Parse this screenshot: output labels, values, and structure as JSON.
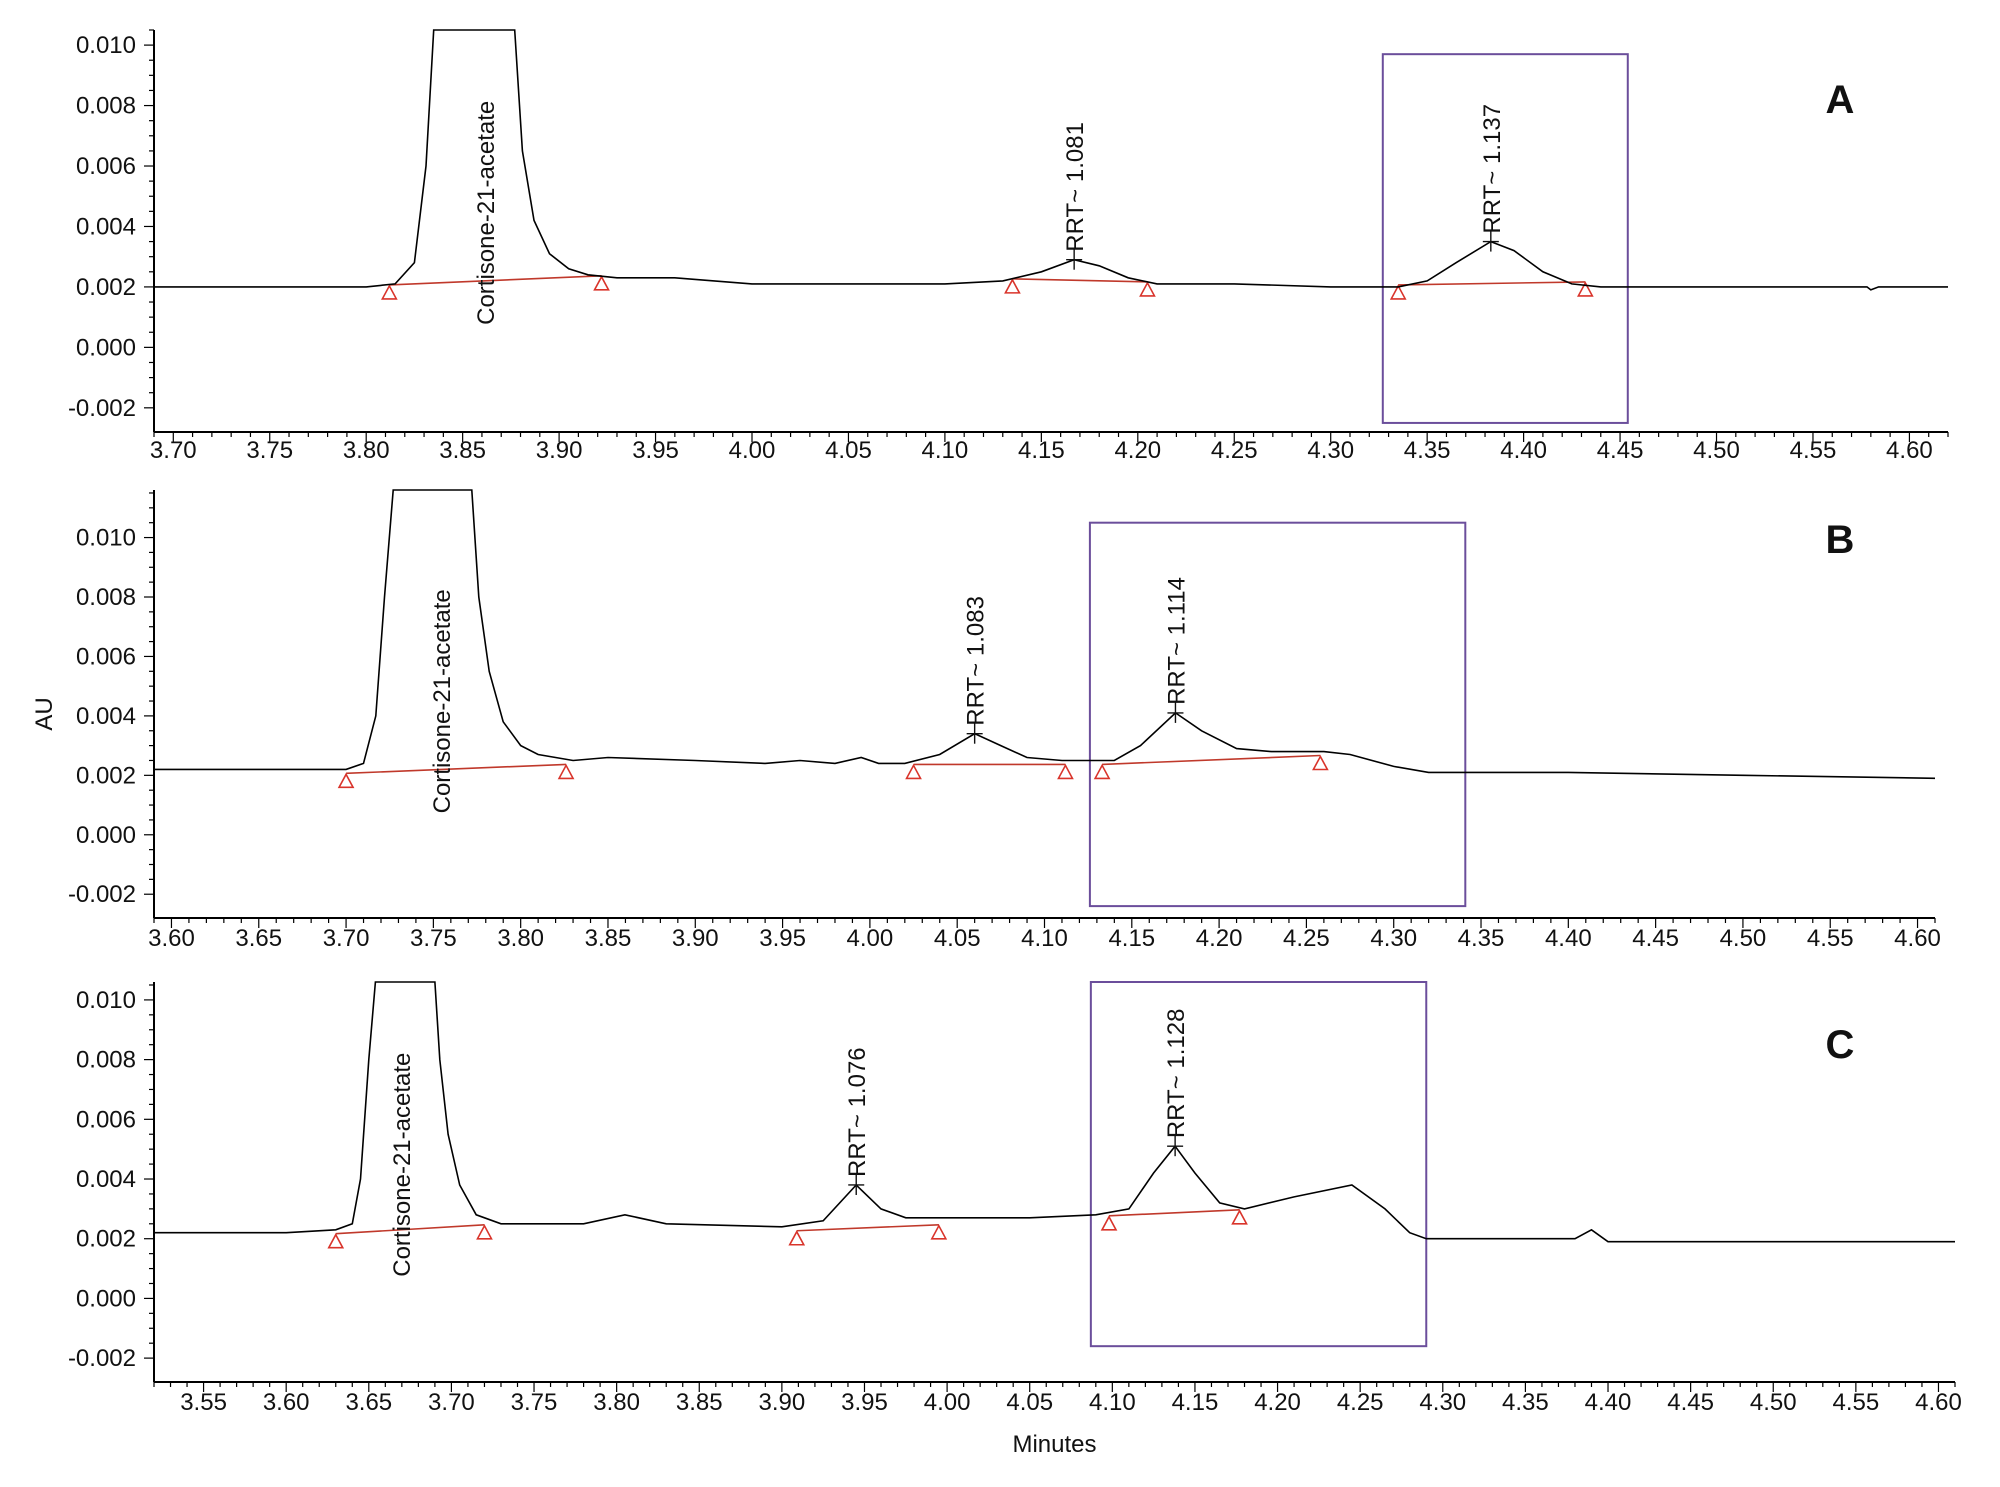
{
  "chart_data": [
    {
      "type": "line",
      "panel_label": "A",
      "xlim": [
        3.69,
        4.62
      ],
      "ylim": [
        -0.0028,
        0.0105
      ],
      "x_ticks": [
        "3.70",
        "3.75",
        "3.80",
        "3.85",
        "3.90",
        "3.95",
        "4.00",
        "4.05",
        "4.10",
        "4.15",
        "4.20",
        "4.25",
        "4.30",
        "4.35",
        "4.40",
        "4.45",
        "4.50",
        "4.55",
        "4.60"
      ],
      "y_ticks": [
        "0.010",
        "0.008",
        "0.006",
        "0.004",
        "0.002",
        "0.000",
        "-0.002"
      ],
      "trace": [
        [
          3.69,
          0.002
        ],
        [
          3.8,
          0.002
        ],
        [
          3.815,
          0.0021
        ],
        [
          3.825,
          0.0028
        ],
        [
          3.831,
          0.006
        ],
        [
          3.835,
          0.0105
        ],
        [
          3.877,
          0.0105
        ],
        [
          3.881,
          0.0065
        ],
        [
          3.887,
          0.0042
        ],
        [
          3.895,
          0.0031
        ],
        [
          3.905,
          0.0026
        ],
        [
          3.915,
          0.0024
        ],
        [
          3.93,
          0.0023
        ],
        [
          3.96,
          0.0023
        ],
        [
          4.0,
          0.0021
        ],
        [
          4.05,
          0.0021
        ],
        [
          4.1,
          0.0021
        ],
        [
          4.13,
          0.0022
        ],
        [
          4.15,
          0.0025
        ],
        [
          4.167,
          0.0029
        ],
        [
          4.18,
          0.0027
        ],
        [
          4.195,
          0.0023
        ],
        [
          4.21,
          0.0021
        ],
        [
          4.25,
          0.0021
        ],
        [
          4.3,
          0.002
        ],
        [
          4.335,
          0.002
        ],
        [
          4.35,
          0.0022
        ],
        [
          4.365,
          0.0028
        ],
        [
          4.383,
          0.0035
        ],
        [
          4.395,
          0.0032
        ],
        [
          4.41,
          0.0025
        ],
        [
          4.425,
          0.0021
        ],
        [
          4.44,
          0.002
        ],
        [
          4.5,
          0.002
        ],
        [
          4.578,
          0.002
        ],
        [
          4.58,
          0.0019
        ],
        [
          4.584,
          0.002
        ],
        [
          4.62,
          0.002
        ]
      ],
      "peaks": [
        {
          "label": "Cortisone-21-acetate",
          "x": 3.862,
          "y": 0.0022,
          "start": [
            3.812,
            0.002
          ],
          "end": [
            3.922,
            0.0023
          ]
        },
        {
          "label": "RRT~ 1.081",
          "x": 4.167,
          "y": 0.0029,
          "start": [
            4.135,
            0.0022
          ],
          "end": [
            4.205,
            0.0021
          ]
        },
        {
          "label": "RRT~ 1.137",
          "x": 4.383,
          "y": 0.0035,
          "start": [
            4.335,
            0.002
          ],
          "end": [
            4.432,
            0.0021
          ]
        }
      ],
      "box": {
        "x0": 4.327,
        "x1": 4.454,
        "y0": -0.0025,
        "y1": 0.0097
      }
    },
    {
      "type": "line",
      "panel_label": "B",
      "ylabel": "AU",
      "xlim": [
        3.59,
        4.61
      ],
      "ylim": [
        -0.0028,
        0.0116
      ],
      "x_ticks": [
        "3.60",
        "3.65",
        "3.70",
        "3.75",
        "3.80",
        "3.85",
        "3.90",
        "3.95",
        "4.00",
        "4.05",
        "4.10",
        "4.15",
        "4.20",
        "4.25",
        "4.30",
        "4.35",
        "4.40",
        "4.45",
        "4.50",
        "4.55",
        "4.60"
      ],
      "y_ticks": [
        "0.010",
        "0.008",
        "0.006",
        "0.004",
        "0.002",
        "0.000",
        "-0.002"
      ],
      "trace": [
        [
          3.59,
          0.0022
        ],
        [
          3.7,
          0.0022
        ],
        [
          3.71,
          0.0024
        ],
        [
          3.717,
          0.004
        ],
        [
          3.722,
          0.008
        ],
        [
          3.727,
          0.0116
        ],
        [
          3.772,
          0.0116
        ],
        [
          3.776,
          0.008
        ],
        [
          3.782,
          0.0055
        ],
        [
          3.79,
          0.0038
        ],
        [
          3.8,
          0.003
        ],
        [
          3.81,
          0.0027
        ],
        [
          3.83,
          0.0025
        ],
        [
          3.85,
          0.0026
        ],
        [
          3.9,
          0.0025
        ],
        [
          3.94,
          0.0024
        ],
        [
          3.96,
          0.0025
        ],
        [
          3.98,
          0.0024
        ],
        [
          3.995,
          0.0026
        ],
        [
          4.005,
          0.0024
        ],
        [
          4.02,
          0.0024
        ],
        [
          4.04,
          0.0027
        ],
        [
          4.06,
          0.0034
        ],
        [
          4.075,
          0.003
        ],
        [
          4.09,
          0.0026
        ],
        [
          4.11,
          0.0025
        ],
        [
          4.14,
          0.0025
        ],
        [
          4.155,
          0.003
        ],
        [
          4.175,
          0.0041
        ],
        [
          4.19,
          0.0035
        ],
        [
          4.21,
          0.0029
        ],
        [
          4.23,
          0.0028
        ],
        [
          4.26,
          0.0028
        ],
        [
          4.275,
          0.0027
        ],
        [
          4.3,
          0.0023
        ],
        [
          4.32,
          0.0021
        ],
        [
          4.4,
          0.0021
        ],
        [
          4.5,
          0.002
        ],
        [
          4.61,
          0.0019
        ]
      ],
      "peaks": [
        {
          "label": "Cortisone-21-acetate",
          "x": 3.755,
          "y": 0.0022,
          "start": [
            3.7,
            0.002
          ],
          "end": [
            3.826,
            0.0023
          ]
        },
        {
          "label": "RRT~ 1.083",
          "x": 4.06,
          "y": 0.0034,
          "start": [
            4.025,
            0.0023
          ],
          "end": [
            4.112,
            0.0023
          ]
        },
        {
          "label": "RRT~ 1.114",
          "x": 4.175,
          "y": 0.0041,
          "start": [
            4.133,
            0.0023
          ],
          "end": [
            4.258,
            0.0026
          ]
        }
      ],
      "box": {
        "x0": 4.126,
        "x1": 4.341,
        "y0": -0.0024,
        "y1": 0.0105
      }
    },
    {
      "type": "line",
      "panel_label": "C",
      "xlabel": "Minutes",
      "xlim": [
        3.52,
        4.61
      ],
      "ylim": [
        -0.0028,
        0.0106
      ],
      "x_ticks": [
        "3.55",
        "3.60",
        "3.65",
        "3.70",
        "3.75",
        "3.80",
        "3.85",
        "3.90",
        "3.95",
        "4.00",
        "4.05",
        "4.10",
        "4.15",
        "4.20",
        "4.25",
        "4.30",
        "4.35",
        "4.40",
        "4.45",
        "4.50",
        "4.55",
        "4.60"
      ],
      "y_ticks": [
        "0.010",
        "0.008",
        "0.006",
        "0.004",
        "0.002",
        "0.000",
        "-0.002"
      ],
      "trace": [
        [
          3.52,
          0.0022
        ],
        [
          3.6,
          0.0022
        ],
        [
          3.63,
          0.0023
        ],
        [
          3.64,
          0.0025
        ],
        [
          3.645,
          0.004
        ],
        [
          3.65,
          0.008
        ],
        [
          3.654,
          0.0106
        ],
        [
          3.69,
          0.0106
        ],
        [
          3.693,
          0.008
        ],
        [
          3.698,
          0.0055
        ],
        [
          3.705,
          0.0038
        ],
        [
          3.715,
          0.0028
        ],
        [
          3.73,
          0.0025
        ],
        [
          3.78,
          0.0025
        ],
        [
          3.805,
          0.0028
        ],
        [
          3.83,
          0.0025
        ],
        [
          3.9,
          0.0024
        ],
        [
          3.925,
          0.0026
        ],
        [
          3.945,
          0.0038
        ],
        [
          3.96,
          0.003
        ],
        [
          3.975,
          0.0027
        ],
        [
          4.0,
          0.0027
        ],
        [
          4.05,
          0.0027
        ],
        [
          4.09,
          0.0028
        ],
        [
          4.11,
          0.003
        ],
        [
          4.125,
          0.0042
        ],
        [
          4.138,
          0.0051
        ],
        [
          4.15,
          0.0042
        ],
        [
          4.165,
          0.0032
        ],
        [
          4.18,
          0.003
        ],
        [
          4.21,
          0.0034
        ],
        [
          4.245,
          0.0038
        ],
        [
          4.265,
          0.003
        ],
        [
          4.28,
          0.0022
        ],
        [
          4.29,
          0.002
        ],
        [
          4.38,
          0.002
        ],
        [
          4.39,
          0.0023
        ],
        [
          4.4,
          0.0019
        ],
        [
          4.5,
          0.0019
        ],
        [
          4.61,
          0.0019
        ]
      ],
      "peaks": [
        {
          "label": "Cortisone-21-acetate",
          "x": 3.67,
          "y": 0.0022,
          "start": [
            3.63,
            0.0021
          ],
          "end": [
            3.72,
            0.0024
          ]
        },
        {
          "label": "RRT~ 1.076",
          "x": 3.945,
          "y": 0.0038,
          "start": [
            3.909,
            0.0022
          ],
          "end": [
            3.995,
            0.0024
          ]
        },
        {
          "label": "RRT~ 1.128",
          "x": 4.138,
          "y": 0.0051,
          "start": [
            4.098,
            0.0027
          ],
          "end": [
            4.177,
            0.0029
          ]
        }
      ],
      "box": {
        "x0": 4.087,
        "x1": 4.29,
        "y0": -0.0016,
        "y1": 0.0106
      }
    }
  ],
  "colors": {
    "trace": "#000000",
    "baseline": "#c0392b",
    "marker": "#d9342b",
    "box": "#6b4e9b",
    "axis": "#000000"
  }
}
